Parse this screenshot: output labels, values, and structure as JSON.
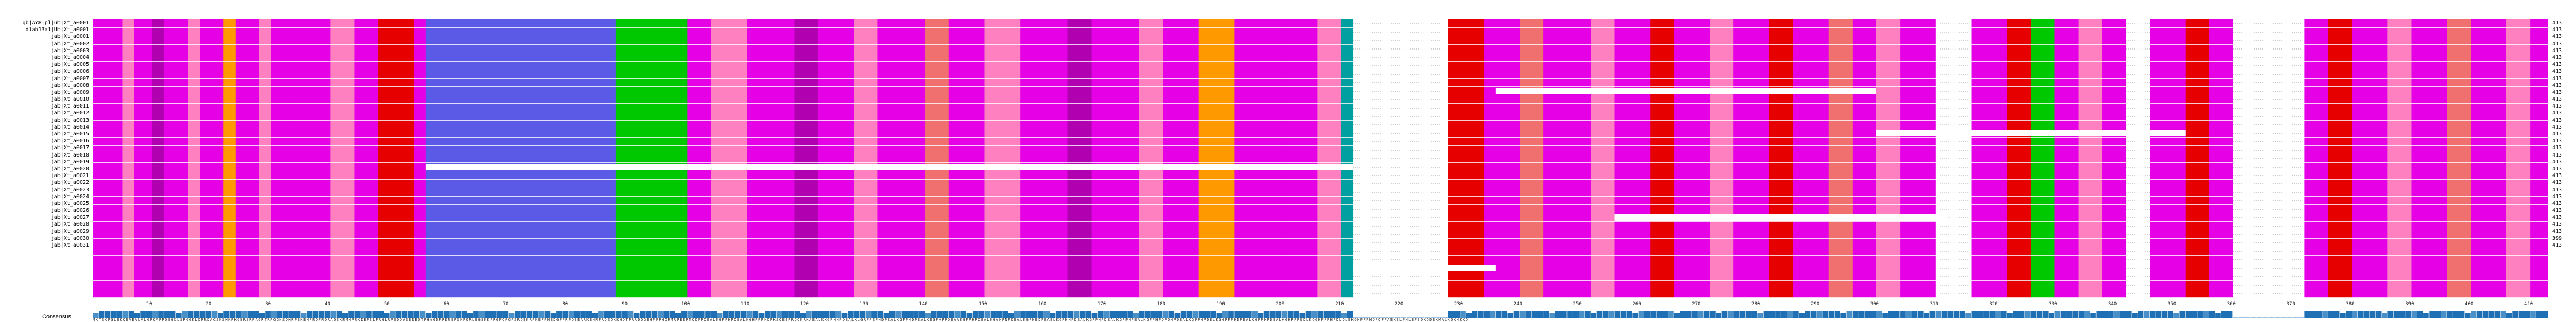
{
  "sequences": [
    {
      "name": "gb|AY8|pl|ub|Xt_a0001",
      "count": "413"
    },
    {
      "name": "dlah13al|Ub|Xt_a0001",
      "count": "413"
    },
    {
      "name": "jab|Xt_a0001",
      "count": "413"
    },
    {
      "name": "jab|Xt_a0002",
      "count": "413"
    },
    {
      "name": "jab|Xt_a0003",
      "count": "413"
    },
    {
      "name": "jab|Xt_a0004",
      "count": "413"
    },
    {
      "name": "jab|Xt_a0005",
      "count": "413"
    },
    {
      "name": "jab|Xt_a0006",
      "count": "413"
    },
    {
      "name": "jab|Xt_a0007",
      "count": "413"
    },
    {
      "name": "jab|Xt_a0008",
      "count": "413"
    },
    {
      "name": "jab|Xt_a0009",
      "count": "413"
    },
    {
      "name": "jab|Xt_a0010",
      "count": "413"
    },
    {
      "name": "jab|Xt_a0011",
      "count": "413"
    },
    {
      "name": "jab|Xt_a0012",
      "count": "413"
    },
    {
      "name": "jab|Xt_a0013",
      "count": "413"
    },
    {
      "name": "jab|Xt_a0014",
      "count": "413"
    },
    {
      "name": "jab|Xt_a0015",
      "count": "413"
    },
    {
      "name": "jab|Xt_a0016",
      "count": "413"
    },
    {
      "name": "jab|Xt_a0017",
      "count": "413"
    },
    {
      "name": "jab|Xt_a0018",
      "count": "413"
    },
    {
      "name": "jab|Xt_a0019",
      "count": "413"
    },
    {
      "name": "jab|Xt_a0020",
      "count": "413"
    },
    {
      "name": "jab|Xt_a0021",
      "count": "413"
    },
    {
      "name": "jab|Xt_a0022",
      "count": "413"
    },
    {
      "name": "jab|Xt_a0023",
      "count": "413"
    },
    {
      "name": "jab|Xt_a0024",
      "count": "413"
    },
    {
      "name": "jab|Xt_a0025",
      "count": "413"
    },
    {
      "name": "jab|Xt_a0026",
      "count": "413"
    },
    {
      "name": "jab|Xt_a0027",
      "count": "413"
    },
    {
      "name": "jab|Xt_a0028",
      "count": "413"
    },
    {
      "name": "jab|Xt_a0029",
      "count": "413"
    },
    {
      "name": "jab|Xt_a0030",
      "count": "399"
    },
    {
      "name": "jab|Xt_a0031",
      "count": "413"
    }
  ],
  "alignment_length": 413,
  "ruler_ticks": [
    "10",
    "20",
    "30",
    "40",
    "50",
    "60",
    "70",
    "80",
    "90",
    "100",
    "110",
    "120",
    "130",
    "140",
    "150",
    "160",
    "170",
    "180",
    "190",
    "200",
    "210",
    "220",
    "230",
    "240",
    "250",
    "260",
    "270",
    "280",
    "290",
    "300",
    "310",
    "320",
    "330",
    "340",
    "350",
    "360",
    "370",
    "380",
    "390",
    "400",
    "410"
  ],
  "consensus": {
    "label": "Consensus",
    "sequence": "MKTSKPGLEKKEVEALVLGPKAPPQEGCLSPGGKLDRRDACSKSMKPKGERSRPAGRTRPGGNSDMRPEKEHFRDFRDRAQSKRMHPRKIEPSLFRGLRPQDDASEDEQTPHYGDFRDREPSKPQRLEGEKKPRGFQFGPSRQEKRPKEFPHEDGFPRPQEEARKEHRFRDSQKKHDTPRRDQGEHPFPHQRMRPEERMKDFPDEALKGFPHPDEALKGHPFPHDPKSQEEFRDQKRKAEALKKGFHHPDEALKLGRFPSPHDPEALKGFPHDPEALKEGFHPPDEAAKGFPHPDEALKGAHPNPDEALKGFHEDPEAELKGFHHPDEALKGFPHPDEALKGFPHPEALKGFPHPDFQHPDEALKGFPHPDELKGHPFPHDPEALKGFPHPDEALKGHPFPQDLKQGHPFPHPDLDLEKGHPFPHDPQFPAEKELPHLEFSDKQDEKMALKQKHKKQ",
    "colors": {
      "high": "#1f6fb4",
      "mid": "#4a90c8",
      "low": "#9cc3e4"
    }
  },
  "colors": {
    "magenta": "#e600e6",
    "red": "#e60000",
    "blue": "#5a5ae6",
    "green": "#00c800",
    "pink": "#ff80c0",
    "orange": "#ff9900",
    "violet": "#b000b0",
    "salmon": "#f07070",
    "teal": "#00a0a0",
    "gray": "#c8c8c8",
    "gap": "#ffffff"
  }
}
